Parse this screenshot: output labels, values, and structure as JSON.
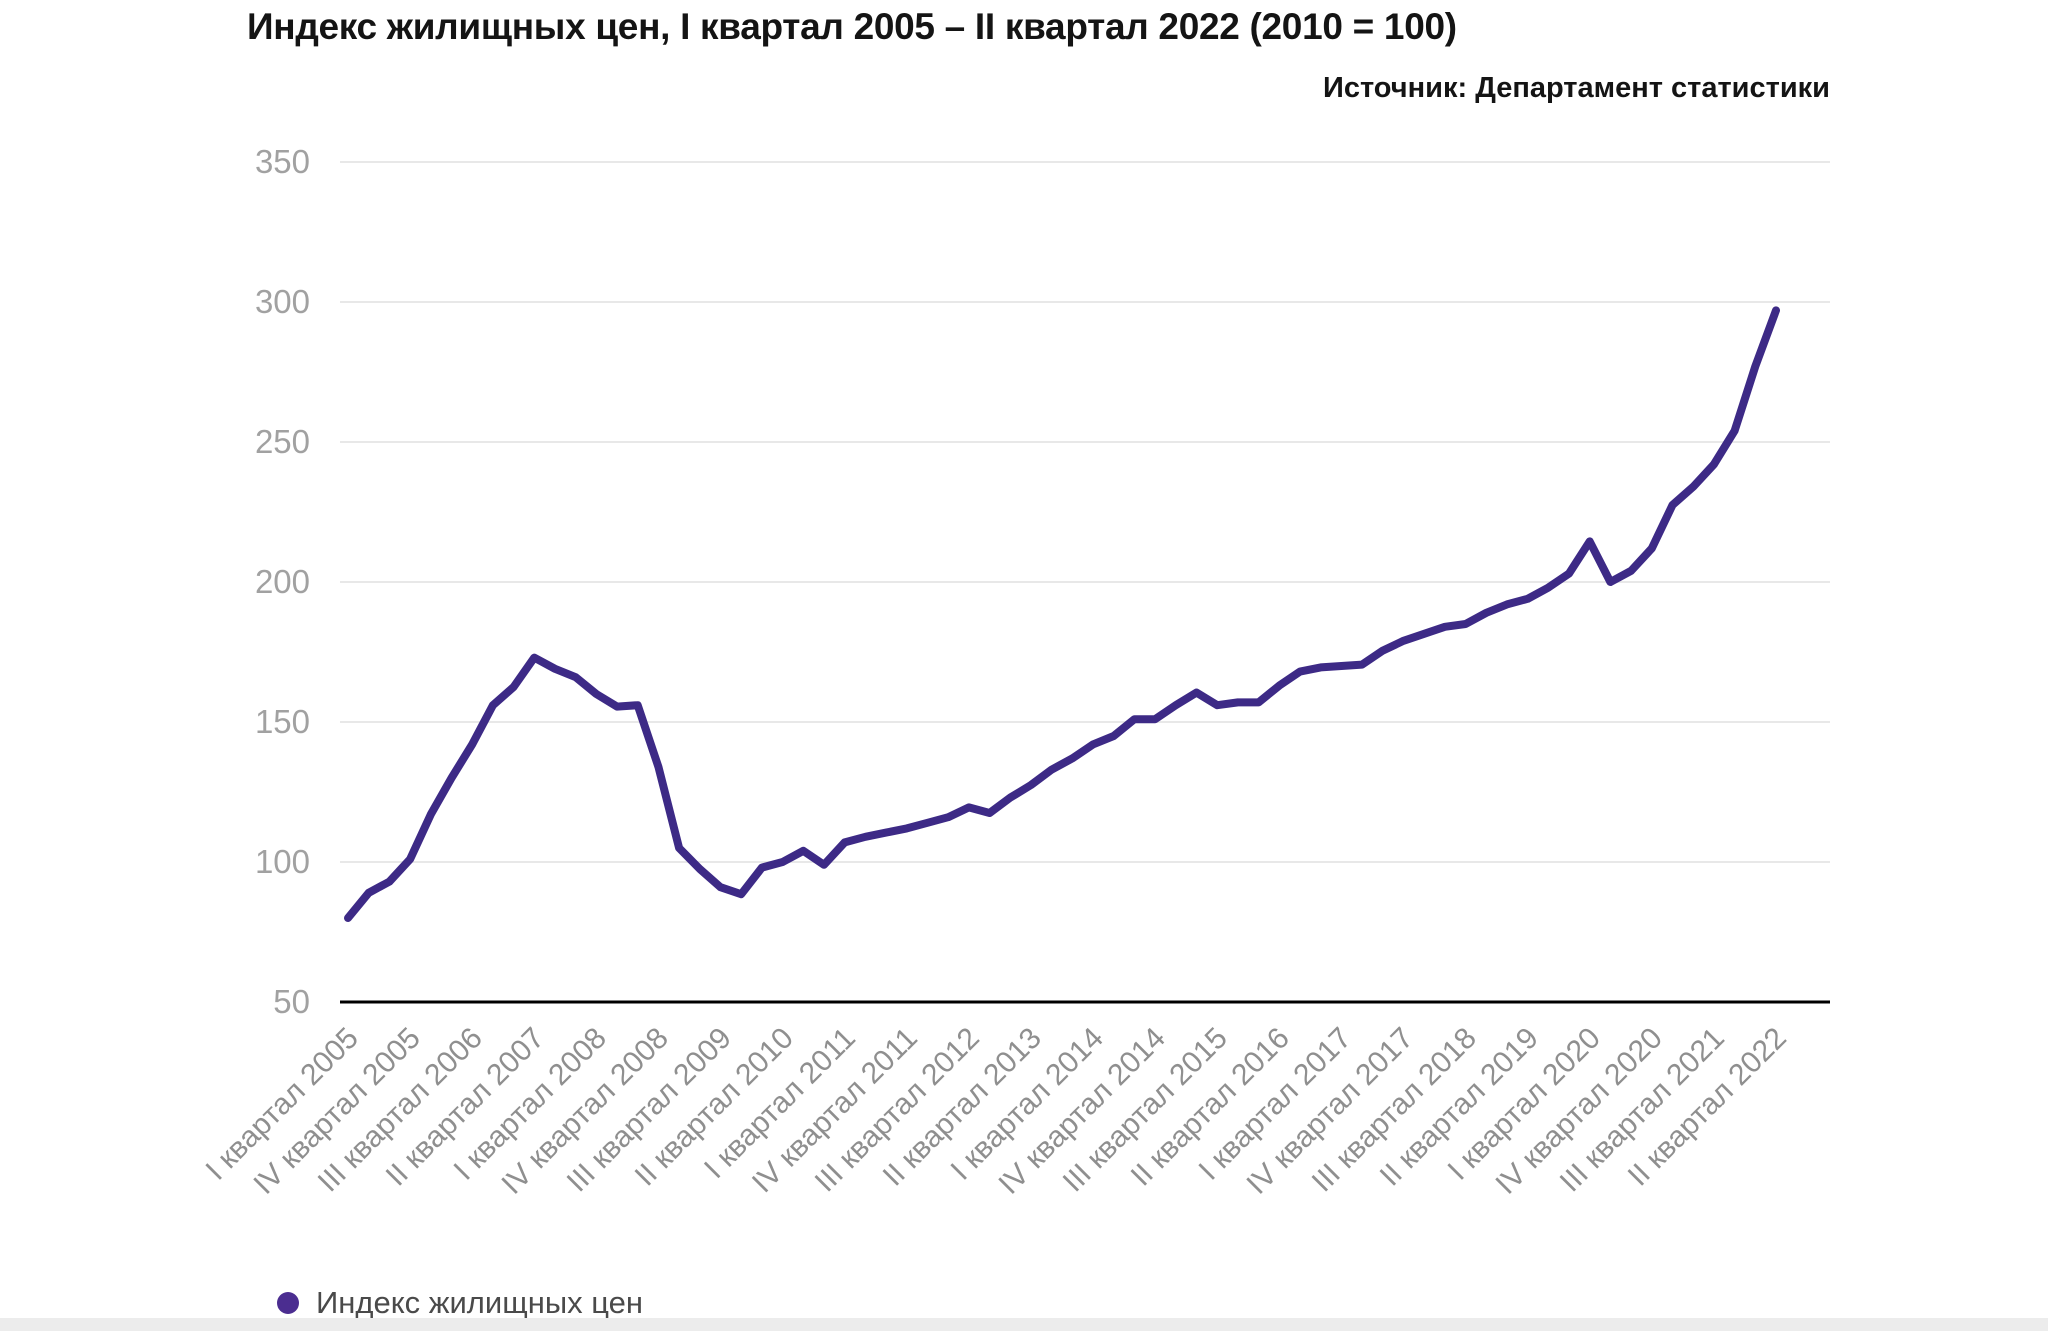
{
  "title": "Индекс жилищных цен, I квартал 2005 – II квартал 2022 (2010 = 100)",
  "source": "Источник: Департамент статистики",
  "legend": {
    "label": "Индекс жилищных цен"
  },
  "colors": {
    "line": "#3d2a86",
    "legend_dot": "#4b2d90",
    "grid": "#e8e8e8",
    "axis": "#000000",
    "y_label": "#a1a1a1",
    "x_label": "#8f8f8f",
    "footer_strip": "#ececec"
  },
  "chart_data": {
    "type": "line",
    "title": "Индекс жилищных цен, I квартал 2005 – II квартал 2022 (2010 = 100)",
    "ylabel": "",
    "xlabel": "",
    "ylim": [
      50,
      350
    ],
    "yticks": [
      50,
      100,
      150,
      200,
      250,
      300,
      350
    ],
    "grid": "horizontal",
    "legend_position": "bottom-left",
    "x_tick_step": 3,
    "x_tick_labels": [
      "I квартал 2005",
      "IV квартал 2005",
      "III квартал 2006",
      "II квартал 2007",
      "I квартал 2008",
      "IV квартал 2008",
      "III квартал 2009",
      "II квартал 2010",
      "I квартал 2011",
      "IV квартал 2011",
      "III квартал 2012",
      "II квартал 2013",
      "I квартал 2014",
      "IV квартал 2014",
      "III квартал 2015",
      "II квартал 2016",
      "I квартал 2017",
      "IV квартал 2017",
      "III квартал 2018",
      "II квартал 2019",
      "I квартал 2020",
      "IV квартал 2020",
      "III квартал 2021",
      "II квартал 2022"
    ],
    "x": [
      "I квартал 2005",
      "II квартал 2005",
      "III квартал 2005",
      "IV квартал 2005",
      "I квартал 2006",
      "II квартал 2006",
      "III квартал 2006",
      "IV квартал 2006",
      "I квартал 2007",
      "II квартал 2007",
      "III квартал 2007",
      "IV квартал 2007",
      "I квартал 2008",
      "II квартал 2008",
      "III квартал 2008",
      "IV квартал 2008",
      "I квартал 2009",
      "II квартал 2009",
      "III квартал 2009",
      "IV квартал 2009",
      "I квартал 2010",
      "II квартал 2010",
      "III квартал 2010",
      "IV квартал 2010",
      "I квартал 2011",
      "II квартал 2011",
      "III квартал 2011",
      "IV квартал 2011",
      "I квартал 2012",
      "II квартал 2012",
      "III квартал 2012",
      "IV квартал 2012",
      "I квартал 2013",
      "II квартал 2013",
      "III квартал 2013",
      "IV квартал 2013",
      "I квартал 2014",
      "II квартал 2014",
      "III квартал 2014",
      "IV квартал 2014",
      "I квартал 2015",
      "II квартал 2015",
      "III квартал 2015",
      "IV квартал 2015",
      "I квартал 2016",
      "II квартал 2016",
      "III квартал 2016",
      "IV квартал 2016",
      "I квартал 2017",
      "II квартал 2017",
      "III квартал 2017",
      "IV квартал 2017",
      "I квартал 2018",
      "II квартал 2018",
      "III квартал 2018",
      "IV квартал 2018",
      "I квартал 2019",
      "II квартал 2019",
      "III квартал 2019",
      "IV квартал 2019",
      "I квартал 2020",
      "II квартал 2020",
      "III квартал 2020",
      "IV квартал 2020",
      "I квартал 2021",
      "II квартал 2021",
      "III квартал 2021",
      "IV квартал 2021",
      "I квартал 2022",
      "II квартал 2022"
    ],
    "series": [
      {
        "name": "Индекс жилищных цен",
        "values": [
          80,
          89,
          93,
          101,
          117,
          130,
          142,
          156,
          162.5,
          173,
          169,
          166,
          160,
          155.5,
          156,
          134,
          105,
          97.5,
          91,
          88.5,
          98,
          100,
          104,
          99,
          107,
          109,
          110.5,
          112,
          114,
          116,
          119.5,
          117.5,
          123,
          127.5,
          133,
          137,
          142,
          145,
          151,
          151,
          156,
          160.5,
          156,
          157,
          157,
          163,
          168,
          169.5,
          170,
          170.5,
          175.5,
          179,
          181.5,
          184,
          185,
          189,
          192,
          194,
          198,
          203,
          214.5,
          200,
          204,
          212,
          227.5,
          234,
          242,
          254,
          277,
          297
        ]
      }
    ]
  }
}
